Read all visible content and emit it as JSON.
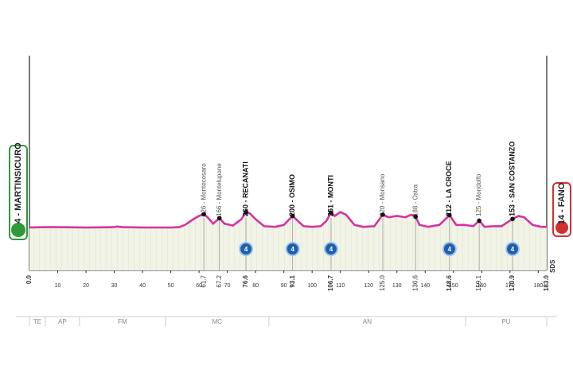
{
  "chart_data": {
    "type": "area",
    "start": {
      "label": "4 - MARTINSICURO",
      "km": 0,
      "km_label": "0.0"
    },
    "finish": {
      "label": "14 - FANO",
      "km": 183,
      "km_label": "183.0"
    },
    "sds": "SDS",
    "color": "#d6339f",
    "xlim": [
      0,
      183
    ],
    "xticks": [
      10,
      20,
      30,
      40,
      50,
      60,
      70,
      80,
      90,
      100,
      110,
      120,
      130,
      140,
      150,
      160,
      170,
      180
    ],
    "ylim": [
      -650,
      2700
    ],
    "x": [
      0,
      5,
      10,
      20,
      30,
      31,
      33,
      40,
      50,
      53,
      55,
      58,
      60,
      61.7,
      63,
      65,
      67.2,
      69,
      72,
      75,
      76.6,
      78,
      80,
      83,
      87,
      90,
      93.1,
      95,
      97,
      100,
      103,
      105,
      106.7,
      108,
      110,
      112,
      115,
      118,
      122,
      125,
      127,
      130,
      133,
      135,
      136.6,
      138,
      141,
      145,
      148.6,
      151,
      154,
      157,
      159.1,
      161,
      164,
      167,
      170.9,
      173,
      175,
      178,
      181,
      183
    ],
    "values": [
      20,
      25,
      25,
      20,
      25,
      35,
      25,
      20,
      20,
      25,
      60,
      150,
      200,
      226,
      180,
      80,
      166,
      80,
      50,
      150,
      260,
      240,
      150,
      40,
      30,
      60,
      200,
      120,
      40,
      30,
      40,
      120,
      251,
      200,
      260,
      220,
      60,
      30,
      40,
      220,
      180,
      200,
      180,
      220,
      188,
      60,
      30,
      60,
      212,
      60,
      60,
      40,
      125,
      30,
      40,
      40,
      153,
      200,
      180,
      60,
      30,
      30
    ],
    "points": [
      {
        "label": "226 - Montecosaro",
        "km": 61.7,
        "km_label": "61.7",
        "elevation": 226,
        "major": false
      },
      {
        "label": "166 - Montelupone",
        "km": 67.2,
        "km_label": "67.2",
        "elevation": 166,
        "major": false
      },
      {
        "label": "260 - RECANATI",
        "km": 76.6,
        "km_label": "76.6",
        "elevation": 260,
        "major": true,
        "kom": "4"
      },
      {
        "label": "200 - OSIMO",
        "km": 93.1,
        "km_label": "93.1",
        "elevation": 200,
        "major": true,
        "kom": "4"
      },
      {
        "label": "251 - MONTI",
        "km": 106.7,
        "km_label": "106.7",
        "elevation": 251,
        "major": true,
        "kom": "4"
      },
      {
        "label": "220 - Monsano",
        "km": 125,
        "km_label": "125.0",
        "elevation": 220,
        "major": false
      },
      {
        "label": "188 - Ostra",
        "km": 136.6,
        "km_label": "136.6",
        "elevation": 188,
        "major": false
      },
      {
        "label": "212 - LA CROCE",
        "km": 148.6,
        "km_label": "148.6",
        "elevation": 212,
        "major": true,
        "kom": "4"
      },
      {
        "label": "125 - Mondolfo",
        "km": 159.1,
        "km_label": "159.1",
        "elevation": 125,
        "major": false
      },
      {
        "label": "153 - SAN COSTANZO",
        "km": 170.9,
        "km_label": "170.9",
        "elevation": 153,
        "major": true,
        "kom": "4"
      }
    ],
    "provinces": [
      {
        "label": "TE",
        "from": 0,
        "to": 5.6
      },
      {
        "label": "AP",
        "from": 5.6,
        "to": 17.7
      },
      {
        "label": "FM",
        "from": 17.7,
        "to": 48.1
      },
      {
        "label": "MC",
        "from": 48.1,
        "to": 84.7
      },
      {
        "label": "AN",
        "from": 84.7,
        "to": 154.3
      },
      {
        "label": "PU",
        "from": 154.3,
        "to": 183
      }
    ]
  }
}
